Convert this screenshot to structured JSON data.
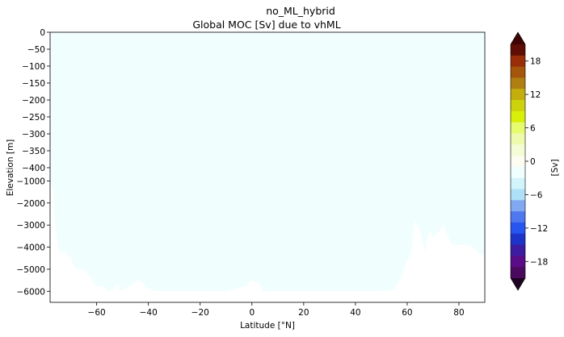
{
  "chart_data": {
    "type": "heatmap",
    "title": "no_ML_hybrid",
    "subtitle": "Global MOC [Sv] due to vhML",
    "xlabel": "Latitude [°N]",
    "ylabel": "Elevation [m]",
    "xlim": [
      -78,
      90
    ],
    "x_ticks": [
      -60,
      -40,
      -20,
      0,
      20,
      40,
      60,
      80
    ],
    "x_tick_labels": [
      "−60",
      "−40",
      "−20",
      "0",
      "20",
      "40",
      "60",
      "80"
    ],
    "y_ticks_upper": [
      0,
      -50,
      -100,
      -150,
      -200,
      -250,
      -300,
      -350,
      -400
    ],
    "y_tick_labels_upper": [
      "0",
      "−50",
      "−100",
      "−150",
      "−200",
      "−250",
      "−300",
      "−350",
      "−400"
    ],
    "y_ticks_lower": [
      -1000,
      -2000,
      -3000,
      -4000,
      -5000,
      -6000
    ],
    "y_tick_labels_lower": [
      "−1000",
      "−2000",
      "−3000",
      "−4000",
      "−5000",
      "−6000"
    ],
    "fill_value_sv": 0,
    "field_color": "#f0fffe",
    "bathymetry": {
      "latitude": [
        -78,
        -77,
        -76.5,
        -76,
        -75,
        -74,
        -73,
        -72,
        -71,
        -70,
        -69,
        -68,
        -67,
        -66,
        -65,
        -64,
        -63,
        -62,
        -61,
        -60,
        -59,
        -58,
        -57,
        -56,
        -55,
        -54,
        -53,
        -52,
        -51,
        -50,
        -49,
        -48,
        -47,
        -46,
        -45,
        -44,
        -43,
        -42,
        -41,
        -40,
        -39,
        -38,
        -37,
        -36,
        -35,
        -34,
        -30,
        -20,
        -10,
        -2,
        -1,
        0,
        1,
        2,
        3,
        4,
        10,
        20,
        30,
        40,
        50,
        54,
        55,
        56,
        57,
        58,
        59,
        60,
        61,
        62,
        62.5,
        63,
        63.5,
        64,
        65,
        66,
        67,
        68,
        69,
        70,
        71,
        72,
        73,
        74,
        75,
        76,
        77,
        78,
        80,
        82,
        84,
        86,
        88,
        90
      ],
      "depth_m": [
        -1000,
        -1400,
        -2000,
        -3000,
        -4000,
        -4300,
        -4200,
        -4250,
        -4400,
        -4500,
        -4800,
        -4950,
        -5000,
        -5000,
        -5050,
        -5100,
        -5300,
        -5400,
        -5700,
        -5750,
        -5800,
        -5800,
        -5800,
        -6000,
        -6000,
        -5950,
        -5800,
        -5700,
        -5950,
        -5950,
        -5900,
        -5800,
        -5750,
        -5700,
        -5600,
        -5500,
        -5550,
        -5650,
        -5800,
        -5850,
        -5900,
        -6000,
        -6000,
        -6000,
        -6000,
        -6000,
        -6000,
        -6000,
        -6000,
        -5750,
        -5550,
        -5500,
        -5550,
        -5600,
        -5700,
        -6000,
        -6000,
        -6000,
        -6000,
        -6000,
        -6000,
        -5950,
        -5900,
        -5700,
        -5500,
        -5200,
        -4900,
        -4600,
        -4400,
        -4000,
        -3200,
        -2700,
        -2900,
        -3000,
        -3300,
        -3800,
        -4200,
        -3500,
        -3300,
        -3600,
        -3400,
        -3300,
        -3200,
        -3000,
        -3300,
        -3600,
        -3800,
        -3900,
        -3900,
        -3900,
        -3900,
        -4100,
        -4300,
        -4400
      ]
    },
    "colorbar": {
      "label": "[Sv]",
      "min": -21,
      "max": 21,
      "step": 2,
      "ticks": [
        18,
        12,
        6,
        0,
        -6,
        -12,
        -18
      ],
      "tick_labels": [
        "18",
        "12",
        "6",
        "0",
        "−6",
        "−12",
        "−18"
      ],
      "colors_top_to_bottom": [
        "#5e0e04",
        "#9a2e08",
        "#a3560c",
        "#b07f12",
        "#c4ae0e",
        "#ccd20c",
        "#d9ef0a",
        "#e7fb6e",
        "#eefbac",
        "#f4fcd6",
        "#fcfcf0",
        "#f0fffe",
        "#d2f4fb",
        "#aee0f7",
        "#80a9f1",
        "#4f78ee",
        "#2855ef",
        "#1e33c8",
        "#3c1ca0",
        "#5a0d86",
        "#4a0a5e"
      ],
      "extend_top_color": "#3e0404",
      "extend_bottom_color": "#1e0422"
    }
  }
}
